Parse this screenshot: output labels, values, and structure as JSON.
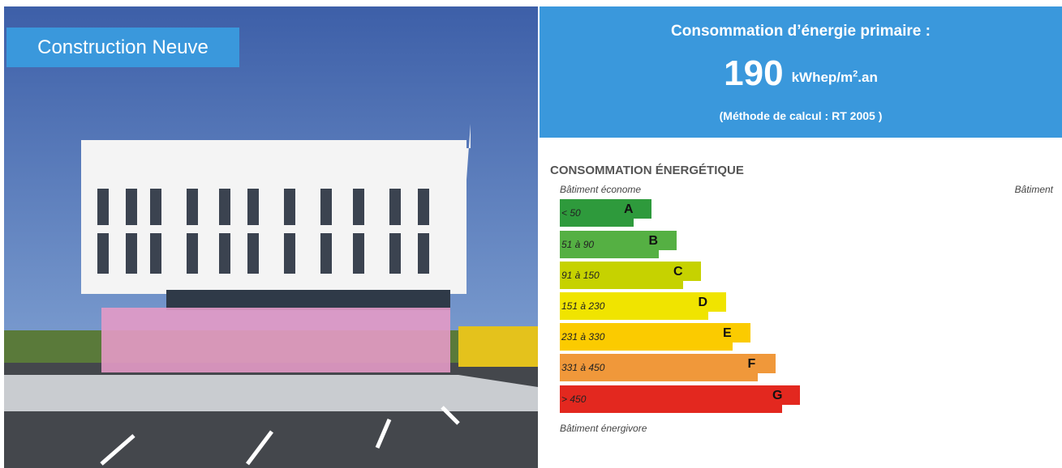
{
  "badge": "Construction Neuve",
  "header": {
    "title": "Consommation d’énergie primaire :",
    "value": "190",
    "unit_main": "kWhep/m",
    "unit_sup": "2",
    "unit_end": ".an",
    "method": "(Méthode de calcul : RT 2005 )"
  },
  "label": {
    "title": "CONSOMMATION ÉNERGÉTIQUE",
    "top_left": "Bâtiment économe",
    "top_right": "Bâtiment",
    "bottom": "Bâtiment énergivore",
    "classes": [
      {
        "range": "< 50",
        "letter": "A",
        "color": "#2e9a3c"
      },
      {
        "range": "51 à 90",
        "letter": "B",
        "color": "#55b043"
      },
      {
        "range": "91 à 150",
        "letter": "C",
        "color": "#c6d200"
      },
      {
        "range": "151 à 230",
        "letter": "D",
        "color": "#f0e400"
      },
      {
        "range": "231 à 330",
        "letter": "E",
        "color": "#fbcb00"
      },
      {
        "range": "331 à 450",
        "letter": "F",
        "color": "#f0983a"
      },
      {
        "range": "> 450",
        "letter": "G",
        "color": "#e3281f"
      }
    ]
  }
}
